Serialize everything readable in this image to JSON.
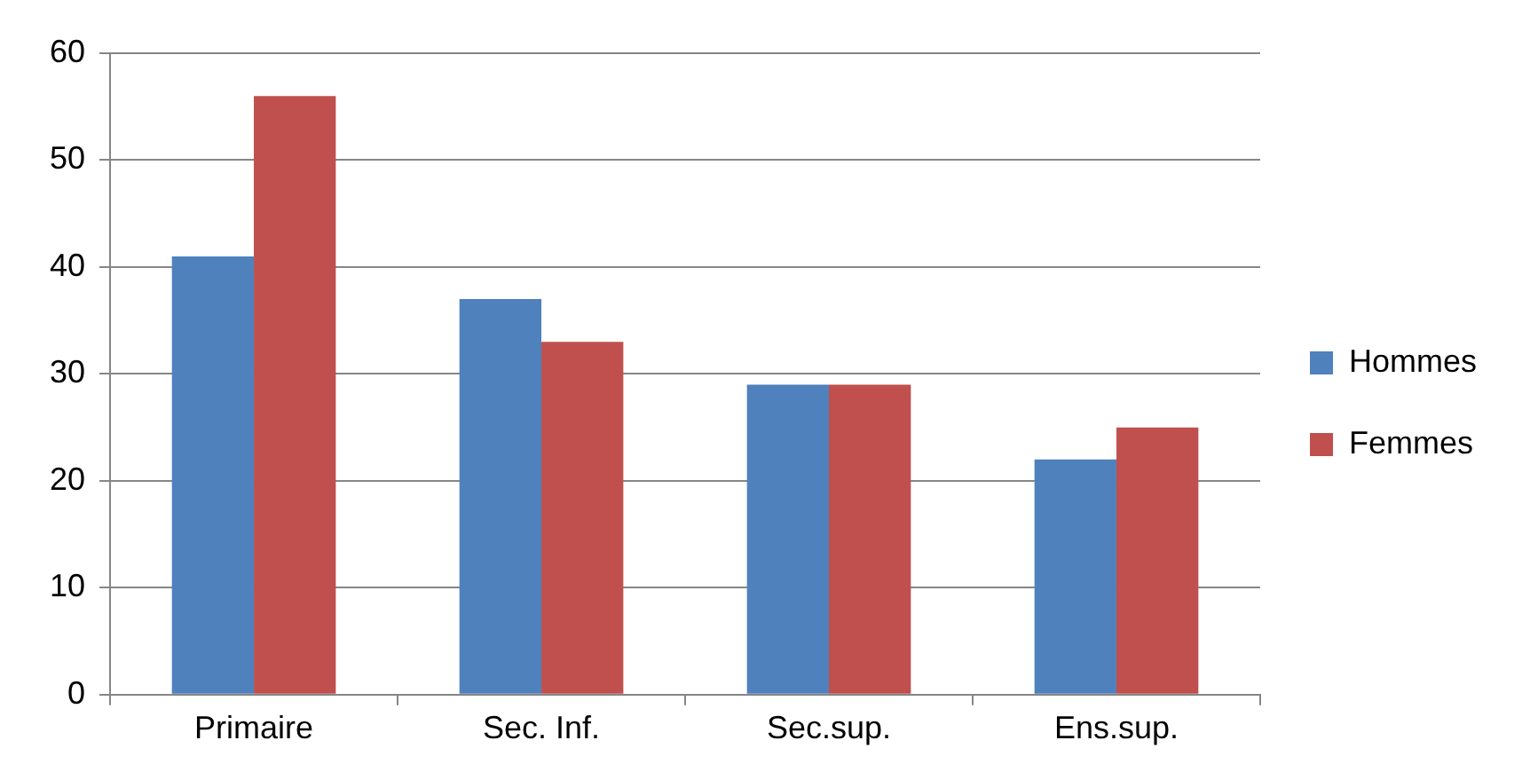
{
  "chart_data": {
    "type": "bar",
    "categories": [
      "Primaire",
      "Sec. Inf.",
      "Sec.sup.",
      "Ens.sup."
    ],
    "series": [
      {
        "name": "Hommes",
        "color": "#4f81bd",
        "values": [
          41,
          37,
          29,
          22
        ]
      },
      {
        "name": "Femmes",
        "color": "#c0504d",
        "values": [
          56,
          33,
          29,
          25
        ]
      }
    ],
    "ylim": [
      0,
      60
    ],
    "yticks": [
      0,
      10,
      20,
      30,
      40,
      50,
      60
    ],
    "grid": "y",
    "legend": "right"
  }
}
